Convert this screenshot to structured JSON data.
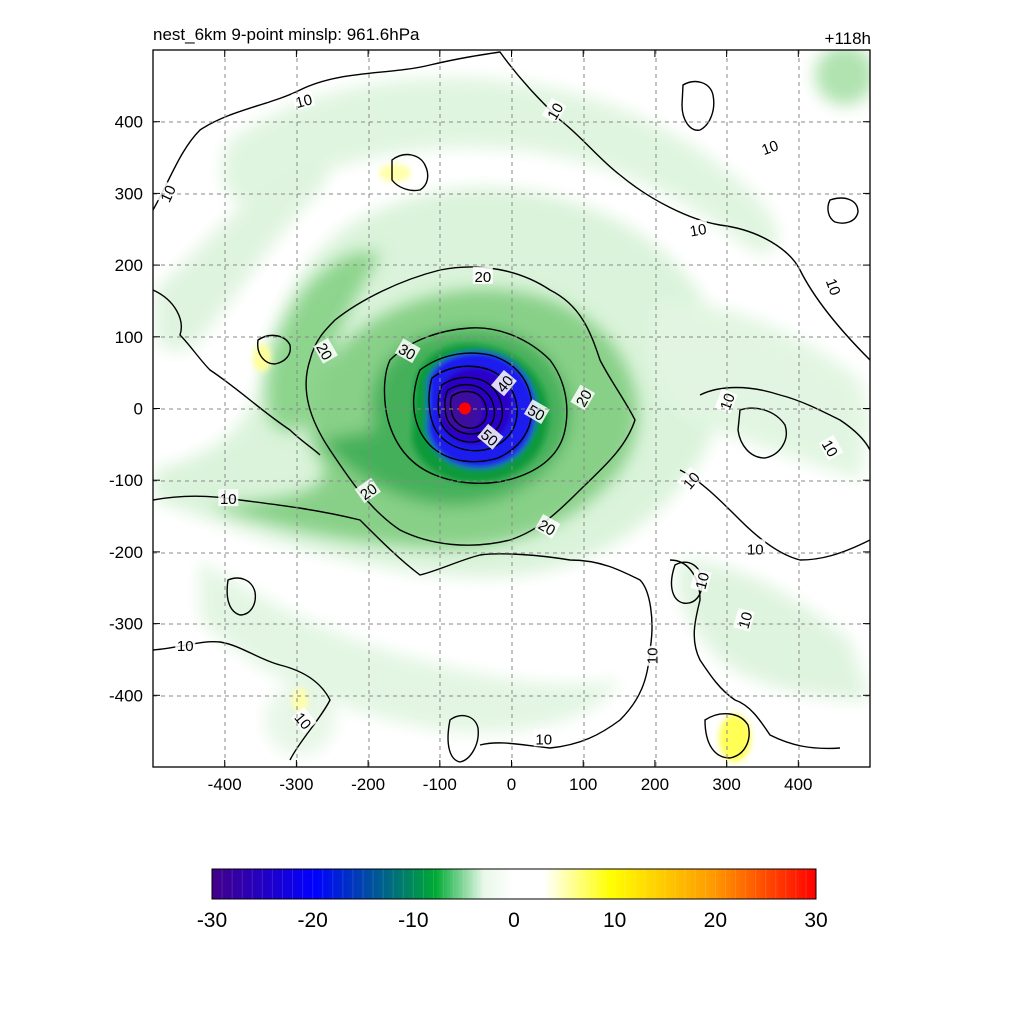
{
  "header": {
    "title": "nest_6km  9-point minslp: 961.6hPa",
    "forecast_hour": "+118h"
  },
  "map": {
    "x_range": [
      -500,
      500
    ],
    "y_range": [
      -500,
      500
    ],
    "x_ticks": [
      -400,
      -300,
      -200,
      -100,
      0,
      100,
      200,
      300,
      400
    ],
    "y_ticks": [
      400,
      300,
      200,
      100,
      0,
      -100,
      -200,
      -300,
      -400
    ],
    "grid": "dashed",
    "storm_center": {
      "x": -65,
      "y": 0,
      "color": "#ff0000"
    },
    "contour_labels": [
      {
        "text": "10",
        "x": -290,
        "y": 430,
        "rotate": 15
      },
      {
        "text": "10",
        "x": 60,
        "y": 415,
        "rotate": 60
      },
      {
        "text": "10",
        "x": 360,
        "y": 365,
        "rotate": 20
      },
      {
        "text": "10",
        "x": -480,
        "y": 300,
        "rotate": 65
      },
      {
        "text": "10",
        "x": 260,
        "y": 250,
        "rotate": 10
      },
      {
        "text": "10",
        "x": 450,
        "y": 170,
        "rotate": -70
      },
      {
        "text": "20",
        "x": -40,
        "y": 185,
        "rotate": 0
      },
      {
        "text": "30",
        "x": -145,
        "y": 80,
        "rotate": -30
      },
      {
        "text": "20",
        "x": -260,
        "y": 80,
        "rotate": -60
      },
      {
        "text": "40",
        "x": -10,
        "y": 35,
        "rotate": 50
      },
      {
        "text": "50",
        "x": 35,
        "y": -5,
        "rotate": -30
      },
      {
        "text": "50",
        "x": -30,
        "y": -40,
        "rotate": -40
      },
      {
        "text": "20",
        "x": 100,
        "y": 15,
        "rotate": 60
      },
      {
        "text": "10",
        "x": 300,
        "y": 10,
        "rotate": 70
      },
      {
        "text": "10",
        "x": 445,
        "y": -55,
        "rotate": -60
      },
      {
        "text": "10",
        "x": 250,
        "y": -100,
        "rotate": 50
      },
      {
        "text": "20",
        "x": -200,
        "y": -115,
        "rotate": 35
      },
      {
        "text": "20",
        "x": 50,
        "y": -165,
        "rotate": -30
      },
      {
        "text": "10",
        "x": -395,
        "y": -125,
        "rotate": 0
      },
      {
        "text": "10",
        "x": 340,
        "y": -195,
        "rotate": 0
      },
      {
        "text": "10",
        "x": 265,
        "y": -240,
        "rotate": 75
      },
      {
        "text": "10",
        "x": 325,
        "y": -295,
        "rotate": 75
      },
      {
        "text": "10",
        "x": -455,
        "y": -330,
        "rotate": 0
      },
      {
        "text": "10",
        "x": 195,
        "y": -345,
        "rotate": 90
      },
      {
        "text": "10",
        "x": -290,
        "y": -435,
        "rotate": -50
      },
      {
        "text": "10",
        "x": 45,
        "y": -460,
        "rotate": 0
      }
    ]
  },
  "colorbar": {
    "min": -30,
    "max": 30,
    "tick_labels": [
      "-30",
      "-20",
      "-10",
      "0",
      "10",
      "20",
      "30"
    ],
    "stops": [
      "#440088",
      "#0000ff",
      "#00aa33",
      "#ffffff",
      "#ffff00",
      "#ff9900",
      "#ff0000"
    ]
  }
}
